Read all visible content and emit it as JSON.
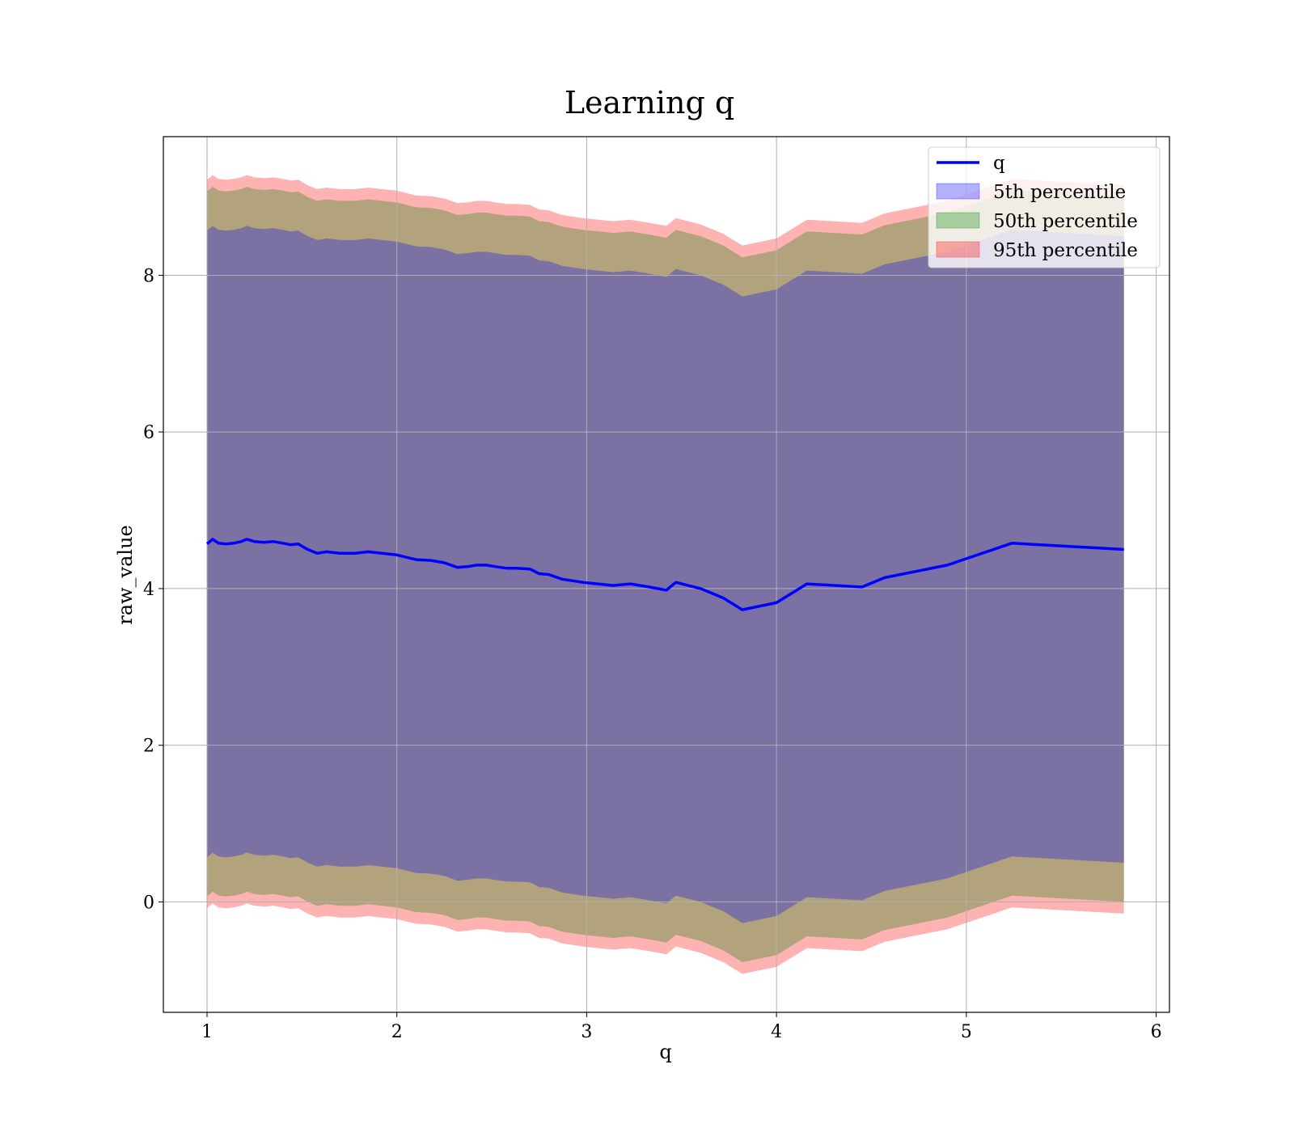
{
  "chart_data": {
    "type": "line",
    "title": "Learning q",
    "xlabel": "q",
    "ylabel": "raw_value",
    "xlim": [
      0.77,
      6.07
    ],
    "ylim": [
      -1.41,
      9.77
    ],
    "xticks": [
      1,
      2,
      3,
      4,
      5,
      6
    ],
    "yticks": [
      0,
      2,
      4,
      6,
      8
    ],
    "grid": true,
    "legend_position": "top-right",
    "x": [
      1.0,
      1.03,
      1.06,
      1.1,
      1.14,
      1.18,
      1.21,
      1.25,
      1.3,
      1.35,
      1.4,
      1.44,
      1.48,
      1.53,
      1.58,
      1.63,
      1.7,
      1.78,
      1.85,
      1.92,
      2.0,
      2.05,
      2.1,
      2.18,
      2.25,
      2.32,
      2.37,
      2.42,
      2.47,
      2.52,
      2.58,
      2.63,
      2.7,
      2.75,
      2.8,
      2.87,
      2.98,
      3.14,
      3.23,
      3.33,
      3.42,
      3.47,
      3.6,
      3.72,
      3.82,
      4.0,
      4.16,
      4.45,
      4.57,
      4.9,
      5.24,
      5.83
    ],
    "series": [
      {
        "name": "q",
        "kind": "line",
        "color": "#0000ff",
        "values": [
          4.57,
          4.63,
          4.58,
          4.57,
          4.58,
          4.6,
          4.63,
          4.6,
          4.59,
          4.6,
          4.58,
          4.56,
          4.57,
          4.5,
          4.45,
          4.47,
          4.45,
          4.45,
          4.47,
          4.45,
          4.43,
          4.4,
          4.37,
          4.36,
          4.33,
          4.27,
          4.28,
          4.3,
          4.3,
          4.28,
          4.26,
          4.26,
          4.25,
          4.19,
          4.18,
          4.12,
          4.08,
          4.04,
          4.06,
          4.02,
          3.98,
          4.08,
          4.0,
          3.88,
          3.73,
          3.82,
          4.06,
          4.02,
          4.14,
          4.3,
          4.58,
          4.5
        ]
      },
      {
        "name": "5th percentile",
        "kind": "band",
        "color": "#0000ff",
        "opacity": 0.3,
        "lower": [
          0.57,
          0.63,
          0.58,
          0.57,
          0.58,
          0.6,
          0.63,
          0.6,
          0.59,
          0.6,
          0.58,
          0.56,
          0.57,
          0.5,
          0.45,
          0.47,
          0.45,
          0.45,
          0.47,
          0.45,
          0.43,
          0.4,
          0.37,
          0.36,
          0.33,
          0.27,
          0.28,
          0.3,
          0.3,
          0.28,
          0.26,
          0.26,
          0.25,
          0.19,
          0.18,
          0.12,
          0.08,
          0.04,
          0.06,
          0.02,
          -0.02,
          0.08,
          0.0,
          -0.12,
          -0.27,
          -0.18,
          0.06,
          0.02,
          0.14,
          0.3,
          0.58,
          0.5
        ],
        "upper": [
          8.57,
          8.63,
          8.58,
          8.57,
          8.58,
          8.6,
          8.63,
          8.6,
          8.59,
          8.6,
          8.58,
          8.56,
          8.57,
          8.5,
          8.45,
          8.47,
          8.45,
          8.45,
          8.47,
          8.45,
          8.43,
          8.4,
          8.37,
          8.36,
          8.33,
          8.27,
          8.28,
          8.3,
          8.3,
          8.28,
          8.26,
          8.26,
          8.25,
          8.19,
          8.18,
          8.12,
          8.08,
          8.04,
          8.06,
          8.02,
          7.98,
          8.08,
          8.0,
          7.88,
          7.73,
          7.82,
          8.06,
          8.02,
          8.14,
          8.3,
          8.58,
          8.5
        ]
      },
      {
        "name": "50th percentile",
        "kind": "band",
        "color": "#008000",
        "opacity": 0.3,
        "lower": [
          0.07,
          0.13,
          0.08,
          0.07,
          0.08,
          0.1,
          0.13,
          0.1,
          0.09,
          0.1,
          0.08,
          0.06,
          0.07,
          0.0,
          -0.05,
          -0.03,
          -0.05,
          -0.05,
          -0.03,
          -0.05,
          -0.07,
          -0.1,
          -0.13,
          -0.14,
          -0.17,
          -0.23,
          -0.22,
          -0.2,
          -0.2,
          -0.22,
          -0.24,
          -0.24,
          -0.25,
          -0.31,
          -0.32,
          -0.38,
          -0.42,
          -0.46,
          -0.44,
          -0.48,
          -0.52,
          -0.42,
          -0.5,
          -0.62,
          -0.77,
          -0.68,
          -0.44,
          -0.48,
          -0.36,
          -0.2,
          0.08,
          0.0
        ],
        "upper": [
          9.07,
          9.13,
          9.08,
          9.07,
          9.08,
          9.1,
          9.13,
          9.1,
          9.09,
          9.1,
          9.08,
          9.06,
          9.07,
          9.0,
          8.95,
          8.97,
          8.95,
          8.95,
          8.97,
          8.95,
          8.93,
          8.9,
          8.87,
          8.86,
          8.83,
          8.77,
          8.78,
          8.8,
          8.8,
          8.78,
          8.76,
          8.76,
          8.75,
          8.69,
          8.68,
          8.62,
          8.58,
          8.54,
          8.56,
          8.52,
          8.48,
          8.58,
          8.5,
          8.38,
          8.23,
          8.32,
          8.56,
          8.52,
          8.64,
          8.8,
          9.08,
          9.0
        ]
      },
      {
        "name": "95th percentile",
        "kind": "band",
        "color": "#ff0000",
        "opacity": 0.3,
        "lower": [
          -0.08,
          -0.02,
          -0.07,
          -0.08,
          -0.07,
          -0.05,
          -0.02,
          -0.05,
          -0.06,
          -0.05,
          -0.07,
          -0.09,
          -0.08,
          -0.15,
          -0.2,
          -0.18,
          -0.2,
          -0.2,
          -0.18,
          -0.2,
          -0.22,
          -0.25,
          -0.28,
          -0.29,
          -0.32,
          -0.38,
          -0.37,
          -0.35,
          -0.35,
          -0.37,
          -0.39,
          -0.39,
          -0.4,
          -0.46,
          -0.47,
          -0.53,
          -0.57,
          -0.61,
          -0.59,
          -0.63,
          -0.67,
          -0.57,
          -0.65,
          -0.77,
          -0.92,
          -0.83,
          -0.59,
          -0.63,
          -0.51,
          -0.35,
          -0.07,
          -0.15
        ],
        "upper": [
          9.22,
          9.28,
          9.23,
          9.22,
          9.23,
          9.25,
          9.28,
          9.25,
          9.24,
          9.25,
          9.23,
          9.21,
          9.22,
          9.15,
          9.1,
          9.12,
          9.1,
          9.1,
          9.12,
          9.1,
          9.08,
          9.05,
          9.02,
          9.01,
          8.98,
          8.92,
          8.93,
          8.95,
          8.95,
          8.93,
          8.91,
          8.91,
          8.9,
          8.84,
          8.83,
          8.77,
          8.73,
          8.69,
          8.71,
          8.67,
          8.63,
          8.73,
          8.65,
          8.53,
          8.38,
          8.47,
          8.71,
          8.67,
          8.79,
          8.95,
          9.23,
          9.15
        ]
      }
    ]
  }
}
